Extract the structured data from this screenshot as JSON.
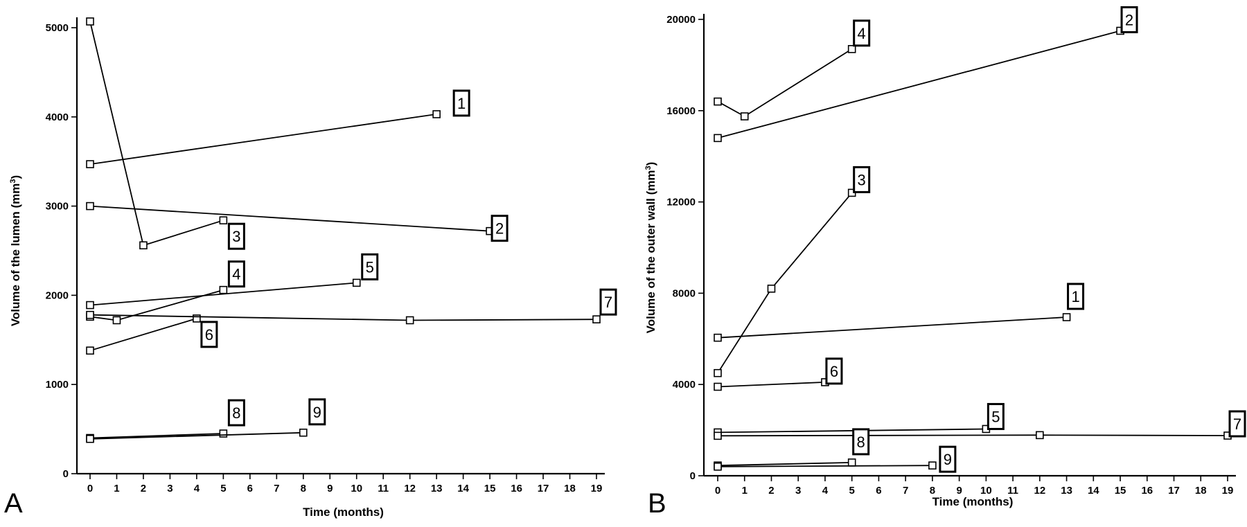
{
  "chart_data": [
    {
      "panel": "A",
      "type": "line",
      "ylabel": "Volume of the lumen (mm3)",
      "xlabel": "Time (months)",
      "xlim": [
        0,
        19
      ],
      "ylim": [
        0,
        5000
      ],
      "x_ticks": [
        0,
        1,
        2,
        3,
        4,
        5,
        6,
        7,
        8,
        9,
        10,
        11,
        12,
        13,
        14,
        15,
        16,
        17,
        18,
        19
      ],
      "y_ticks": [
        0,
        1000,
        2000,
        3000,
        4000,
        5000
      ],
      "grid": false,
      "series": [
        {
          "name": "1",
          "x": [
            0,
            13
          ],
          "y": [
            3470,
            4030
          ]
        },
        {
          "name": "2",
          "x": [
            0,
            15
          ],
          "y": [
            3000,
            2720
          ]
        },
        {
          "name": "3",
          "x": [
            0,
            2,
            5
          ],
          "y": [
            5070,
            2560,
            2840
          ]
        },
        {
          "name": "4",
          "x": [
            0,
            1,
            5
          ],
          "y": [
            1760,
            1720,
            2060
          ]
        },
        {
          "name": "5",
          "x": [
            0,
            10
          ],
          "y": [
            1890,
            2140
          ]
        },
        {
          "name": "6",
          "x": [
            0,
            4
          ],
          "y": [
            1380,
            1740
          ]
        },
        {
          "name": "7",
          "x": [
            0,
            12,
            19
          ],
          "y": [
            1780,
            1720,
            1730
          ]
        },
        {
          "name": "8",
          "x": [
            0,
            5
          ],
          "y": [
            400,
            450
          ]
        },
        {
          "name": "9",
          "x": [
            0,
            8
          ],
          "y": [
            390,
            460
          ]
        }
      ]
    },
    {
      "panel": "B",
      "type": "line",
      "ylabel": "Volume of the outer wall (mm3)",
      "xlabel": "Time (months)",
      "xlim": [
        0,
        19
      ],
      "ylim": [
        0,
        20000
      ],
      "x_ticks": [
        0,
        1,
        2,
        3,
        4,
        5,
        6,
        7,
        8,
        9,
        10,
        11,
        12,
        13,
        14,
        15,
        16,
        17,
        18,
        19
      ],
      "y_ticks": [
        0,
        4000,
        8000,
        12000,
        16000,
        20000
      ],
      "grid": false,
      "series": [
        {
          "name": "1",
          "x": [
            0,
            13
          ],
          "y": [
            6050,
            6950
          ]
        },
        {
          "name": "2",
          "x": [
            0,
            15
          ],
          "y": [
            14800,
            19500
          ]
        },
        {
          "name": "3",
          "x": [
            0,
            2,
            5
          ],
          "y": [
            4500,
            8200,
            12400
          ]
        },
        {
          "name": "4",
          "x": [
            0,
            1,
            5
          ],
          "y": [
            16400,
            15750,
            18700
          ]
        },
        {
          "name": "5",
          "x": [
            0,
            10
          ],
          "y": [
            1900,
            2050
          ]
        },
        {
          "name": "6",
          "x": [
            0,
            4
          ],
          "y": [
            3900,
            4100
          ]
        },
        {
          "name": "7",
          "x": [
            0,
            12,
            19
          ],
          "y": [
            1750,
            1780,
            1760
          ]
        },
        {
          "name": "8",
          "x": [
            0,
            5
          ],
          "y": [
            450,
            580
          ]
        },
        {
          "name": "9",
          "x": [
            0,
            8
          ],
          "y": [
            400,
            450
          ]
        }
      ]
    }
  ]
}
